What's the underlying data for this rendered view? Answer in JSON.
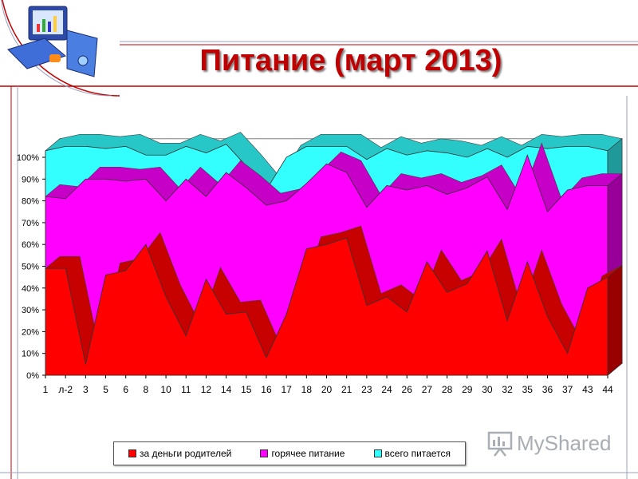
{
  "title": "Питание (март 2013)",
  "watermark": "MyShared",
  "colors": {
    "parents": "#ff0000",
    "hot": "#ff00ff",
    "total": "#33ffff",
    "frame_line": "#c00000",
    "floor": "#bdbdbd"
  },
  "chart_data": {
    "type": "area",
    "stacked_3d": true,
    "y_ticks": [
      "0%",
      "10%",
      "20%",
      "30%",
      "40%",
      "50%",
      "60%",
      "70%",
      "80%",
      "90%",
      "100%"
    ],
    "ylim": [
      0,
      100
    ],
    "categories": [
      "1",
      "л-2",
      "3",
      "5",
      "6",
      "8",
      "10",
      "11",
      "12",
      "14",
      "15",
      "16",
      "17",
      "18",
      "20",
      "21",
      "23",
      "24",
      "26",
      "27",
      "28",
      "29",
      "30",
      "32",
      "35",
      "36",
      "37",
      "43",
      "44"
    ],
    "legend_position": "bottom",
    "series": [
      {
        "name": "за деньги родителей",
        "values": [
          49,
          49,
          5,
          46,
          48,
          60,
          36,
          18,
          44,
          28,
          29,
          8,
          28,
          58,
          60,
          63,
          32,
          36,
          29,
          52,
          38,
          42,
          57,
          25,
          52,
          27,
          10,
          40,
          45
        ]
      },
      {
        "name": "горячее питание",
        "values": [
          82,
          81,
          90,
          90,
          89,
          90,
          80,
          90,
          82,
          93,
          86,
          78,
          80,
          88,
          97,
          93,
          77,
          87,
          85,
          87,
          83,
          86,
          91,
          76,
          101,
          75,
          85,
          87,
          87
        ]
      },
      {
        "name": "всего питается",
        "values": [
          103,
          105,
          105,
          104,
          105,
          101,
          101,
          105,
          102,
          106,
          96,
          85,
          100,
          105,
          105,
          105,
          99,
          104,
          101,
          103,
          102,
          100,
          104,
          100,
          105,
          104,
          105,
          105,
          103
        ]
      }
    ]
  }
}
